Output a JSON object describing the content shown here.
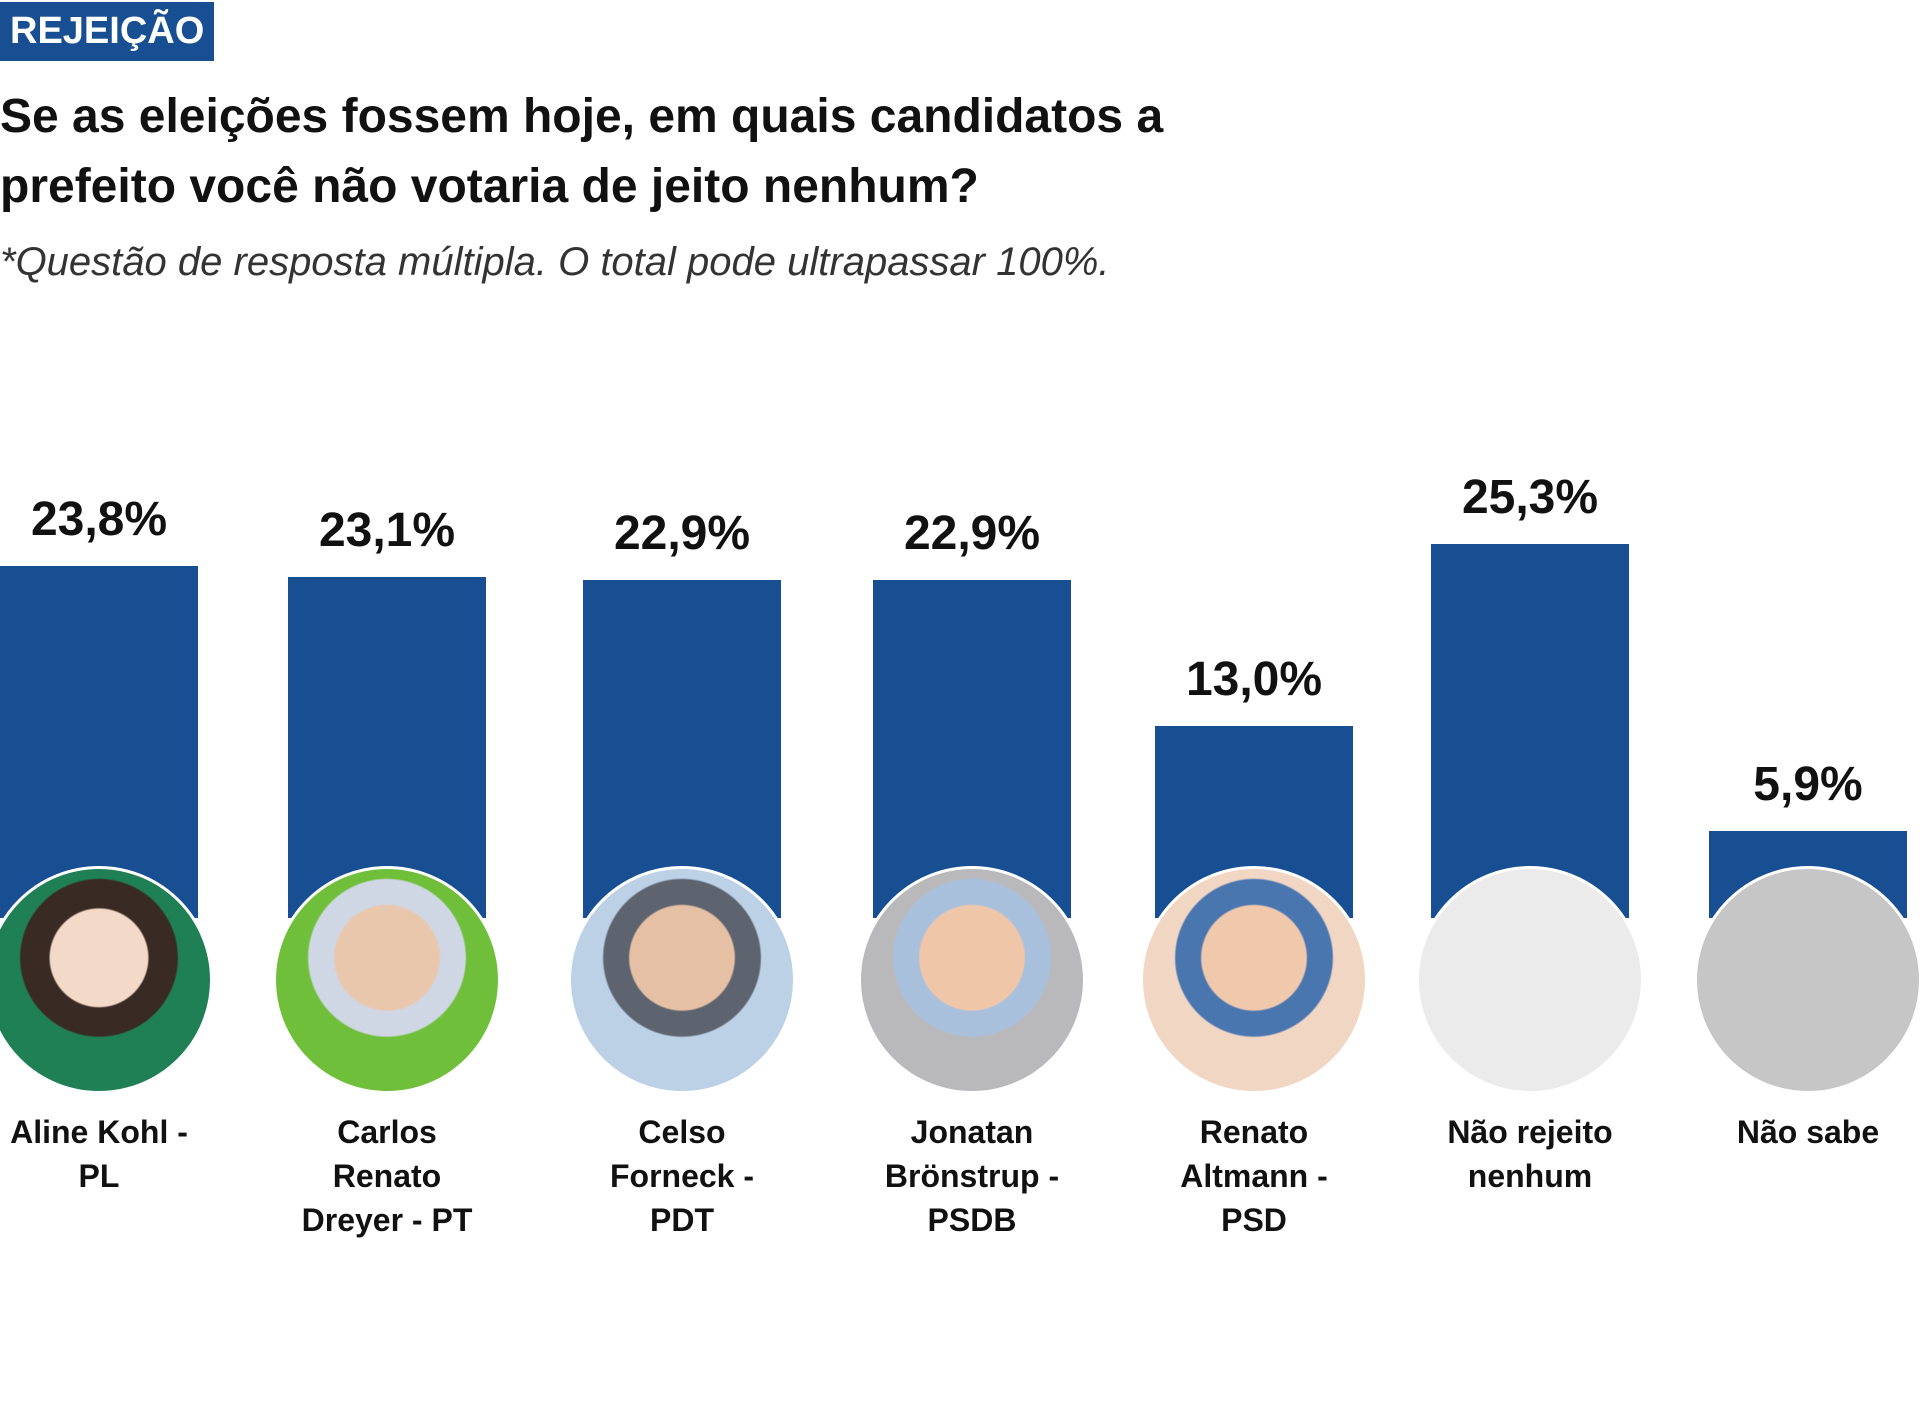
{
  "chart_data": {
    "type": "bar",
    "tag": "REJEIÇÃO",
    "title": "Se as eleições fossem hoje, em quais candidatos a prefeito você não votaria de jeito nenhum?",
    "subtitle": "*Questão de resposta múltipla. O total pode ultrapassar 100%.",
    "categories": [
      "Aline Kohl - PL",
      "Carlos Renato Dreyer - PT",
      "Celso Forneck - PDT",
      "Jonatan Brönstrup - PSDB",
      "Renato Altmann - PSD",
      "Não rejeito nenhum",
      "Não sabe"
    ],
    "values": [
      23.8,
      23.1,
      22.9,
      22.9,
      13.0,
      25.3,
      5.9
    ],
    "value_labels": [
      "23,8%",
      "23,1%",
      "22,9%",
      "22,9%",
      "13,0%",
      "25,3%",
      "5,9%"
    ],
    "color": "#174f92"
  }
}
